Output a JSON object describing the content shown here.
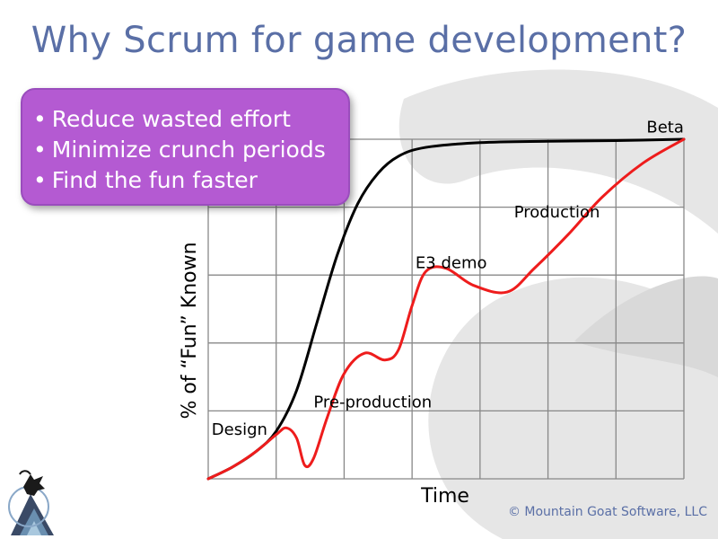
{
  "slide": {
    "title": "Why Scrum for game development?",
    "bullets": [
      "Reduce wasted effort",
      "Minimize crunch periods",
      "Find the fun faster"
    ],
    "copyright": "© Mountain Goat Software, LLC",
    "accent_color": "#b45ad2",
    "title_color": "#5a6fa6",
    "logo_icon": "mountain-goat-logo-icon"
  },
  "chart_data": {
    "type": "line",
    "xlabel": "Time",
    "ylabel": "% of “Fun” Known",
    "xlim": [
      0,
      7
    ],
    "ylim": [
      0,
      5
    ],
    "grid": true,
    "annotations": [
      {
        "text": "Design",
        "x": 0.05,
        "y": 0.65
      },
      {
        "text": "Pre-production",
        "x": 1.55,
        "y": 1.05
      },
      {
        "text": "E3 demo",
        "x": 3.05,
        "y": 3.1
      },
      {
        "text": "Production",
        "x": 4.5,
        "y": 3.85
      },
      {
        "text": "Beta",
        "x": 6.45,
        "y": 5.1
      }
    ],
    "series": [
      {
        "color": "#000000",
        "points": [
          [
            0,
            0
          ],
          [
            0.35,
            0.17
          ],
          [
            0.7,
            0.4
          ],
          [
            1.0,
            0.7
          ],
          [
            1.3,
            1.3
          ],
          [
            1.6,
            2.3
          ],
          [
            1.9,
            3.3
          ],
          [
            2.2,
            4.05
          ],
          [
            2.5,
            4.5
          ],
          [
            2.8,
            4.75
          ],
          [
            3.2,
            4.88
          ],
          [
            4,
            4.95
          ],
          [
            5,
            4.97
          ],
          [
            6,
            4.98
          ],
          [
            7,
            5
          ]
        ]
      },
      {
        "color": "#ee1c1c",
        "points": [
          [
            0,
            0
          ],
          [
            0.35,
            0.17
          ],
          [
            0.7,
            0.4
          ],
          [
            1.0,
            0.65
          ],
          [
            1.15,
            0.75
          ],
          [
            1.3,
            0.6
          ],
          [
            1.42,
            0.2
          ],
          [
            1.55,
            0.3
          ],
          [
            1.75,
            0.9
          ],
          [
            2.0,
            1.55
          ],
          [
            2.3,
            1.85
          ],
          [
            2.6,
            1.75
          ],
          [
            2.8,
            1.9
          ],
          [
            3.0,
            2.55
          ],
          [
            3.2,
            3.05
          ],
          [
            3.5,
            3.1
          ],
          [
            3.9,
            2.85
          ],
          [
            4.4,
            2.75
          ],
          [
            4.8,
            3.1
          ],
          [
            5.3,
            3.6
          ],
          [
            5.8,
            4.15
          ],
          [
            6.4,
            4.65
          ],
          [
            7,
            5
          ]
        ]
      }
    ]
  }
}
